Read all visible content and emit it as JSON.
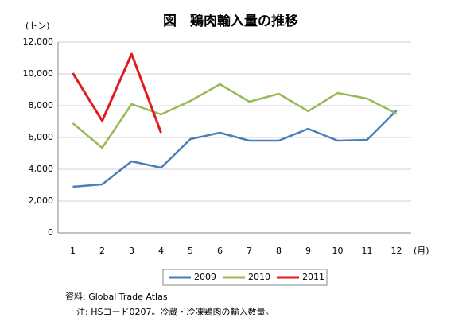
{
  "chart_data": {
    "type": "line",
    "title": "図　鶏肉輸入量の推移",
    "y_axis_label": "(トン)",
    "x_axis_label": "(月)",
    "categories": [
      "1",
      "2",
      "3",
      "4",
      "5",
      "6",
      "7",
      "8",
      "9",
      "10",
      "11",
      "12"
    ],
    "series": [
      {
        "name": "2009",
        "color": "#4a7ebb",
        "values": [
          2900,
          3050,
          4500,
          4100,
          5900,
          6300,
          5800,
          5800,
          6550,
          5800,
          5850,
          7700
        ]
      },
      {
        "name": "2010",
        "color": "#98b954",
        "values": [
          6900,
          5350,
          8100,
          7450,
          8300,
          9350,
          8250,
          8750,
          7650,
          8800,
          8450,
          7500
        ]
      },
      {
        "name": "2011",
        "color": "#e31a1c",
        "values": [
          10050,
          7050,
          11250,
          6300,
          null,
          null,
          null,
          null,
          null,
          null,
          null,
          null
        ]
      }
    ],
    "ylim": [
      0,
      12000
    ],
    "yticks": [
      0,
      {
        "value": 2000,
        "label": "2,000"
      },
      {
        "value": 4000,
        "label": "4,000"
      },
      {
        "value": 6000,
        "label": "6,000"
      },
      {
        "value": 8000,
        "label": "8,000"
      },
      {
        "value": 10000,
        "label": "10,000"
      },
      {
        "value": 12000,
        "label": "12,000"
      }
    ],
    "grid": true,
    "legend": "bottom",
    "notes": [
      "資料: Global Trade Atlas",
      "注: HSコード0207。冷蔵・冷凍鶏肉の輸入数量。"
    ]
  }
}
